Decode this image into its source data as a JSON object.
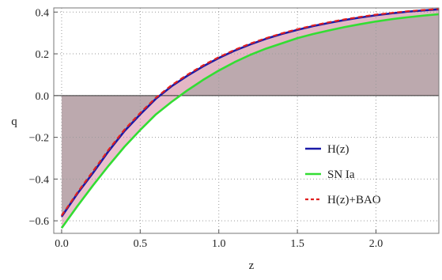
{
  "chart_data": {
    "type": "line",
    "title": "",
    "xlabel": "z",
    "ylabel": "q",
    "xlim": [
      -0.05,
      2.4
    ],
    "ylim": [
      -0.66,
      0.42
    ],
    "grid": true,
    "grid_style": "dotted",
    "legend_position": "lower-right",
    "x_ticks": [
      {
        "value": 0.0,
        "label": "0.0"
      },
      {
        "value": 0.5,
        "label": "0.5"
      },
      {
        "value": 1.0,
        "label": "1.0"
      },
      {
        "value": 1.5,
        "label": "1.5"
      },
      {
        "value": 2.0,
        "label": "2.0"
      }
    ],
    "y_ticks": [
      {
        "value": -0.6,
        "label": "−0.6"
      },
      {
        "value": -0.4,
        "label": "−0.4"
      },
      {
        "value": -0.2,
        "label": "−0.2"
      },
      {
        "value": 0.0,
        "label": "0.0"
      },
      {
        "value": 0.2,
        "label": "0.2"
      },
      {
        "value": 0.4,
        "label": "0.4"
      }
    ],
    "x": [
      0.0,
      0.1,
      0.2,
      0.3,
      0.4,
      0.5,
      0.6,
      0.7,
      0.8,
      0.9,
      1.0,
      1.1,
      1.2,
      1.3,
      1.4,
      1.5,
      1.6,
      1.7,
      1.8,
      1.9,
      2.0,
      2.1,
      2.2,
      2.3,
      2.4
    ],
    "series": [
      {
        "name": "H(z)",
        "color": "#1a1aa8",
        "dash": "solid",
        "values": [
          -0.58,
          -0.47,
          -0.37,
          -0.265,
          -0.17,
          -0.09,
          -0.015,
          0.045,
          0.095,
          0.14,
          0.18,
          0.215,
          0.245,
          0.272,
          0.295,
          0.315,
          0.333,
          0.348,
          0.362,
          0.374,
          0.385,
          0.394,
          0.402,
          0.408,
          0.413
        ]
      },
      {
        "name": "SN Ia",
        "color": "#33dd33",
        "dash": "solid",
        "values": [
          -0.635,
          -0.53,
          -0.43,
          -0.335,
          -0.245,
          -0.165,
          -0.09,
          -0.03,
          0.025,
          0.075,
          0.12,
          0.16,
          0.195,
          0.225,
          0.25,
          0.275,
          0.295,
          0.312,
          0.328,
          0.342,
          0.355,
          0.366,
          0.375,
          0.383,
          0.39
        ]
      },
      {
        "name": "H(z)+BAO",
        "color": "#e02020",
        "dash": "dashed",
        "values": [
          -0.575,
          -0.465,
          -0.362,
          -0.258,
          -0.163,
          -0.083,
          -0.01,
          0.05,
          0.1,
          0.145,
          0.184,
          0.219,
          0.249,
          0.275,
          0.298,
          0.318,
          0.336,
          0.351,
          0.365,
          0.377,
          0.388,
          0.396,
          0.404,
          0.41,
          0.415
        ]
      }
    ],
    "fill": {
      "description_color_fill_between_curves": "#e8b8c8",
      "fill_to_zero_color": "#b09aa0"
    }
  }
}
